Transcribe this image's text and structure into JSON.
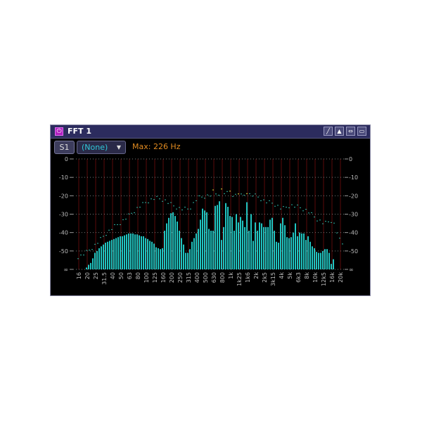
{
  "panel": {
    "title": "FFT 1",
    "power_icon": "power-icon",
    "toolbar_icons": [
      "pencil-icon",
      "collapse-icon",
      "link-icon",
      "maximize-icon"
    ],
    "source_button": "S1",
    "preset_select": "(None)",
    "max_readout": "Max: 226 Hz"
  },
  "colors": {
    "bar": "#20c4c0",
    "peak": "#30b0a0",
    "peak_highlight": "#e0e040",
    "grid_vertical": "#5a0a0a",
    "title_bar": "#2c2c5e",
    "max_text": "#e08a20"
  },
  "chart_data": {
    "type": "bar",
    "ylim": [
      -60,
      0
    ],
    "y_ticks": [
      "0",
      "-10",
      "-20",
      "-30",
      "-40",
      "-50",
      "∞"
    ],
    "y_tick_values": [
      0,
      -10,
      -20,
      -30,
      -40,
      -50,
      -60
    ],
    "x_ticks": [
      "16",
      "20",
      "25",
      "31.5",
      "40",
      "50",
      "63",
      "80",
      "100",
      "125",
      "160",
      "200",
      "250",
      "315",
      "400",
      "500",
      "630",
      "800",
      "1k",
      "1k25",
      "1k6",
      "2k",
      "2k5",
      "3k15",
      "4k",
      "5k",
      "6k3",
      "8k",
      "10k",
      "12k5",
      "16k",
      "20k"
    ],
    "grid": true,
    "values_db": [
      -59,
      -57.5,
      -56.5,
      -54,
      -51,
      -50,
      -48.5,
      -47.5,
      -46.5,
      -45.5,
      -45,
      -44.5,
      -44,
      -43.5,
      -43,
      -42.5,
      -42,
      -42,
      -41.5,
      -41,
      -40.5,
      -40.5,
      -40.5,
      -41,
      -41,
      -41.5,
      -42,
      -42,
      -43,
      -43.5,
      -44.5,
      -45,
      -46,
      -48,
      -48.5,
      -49,
      -48.5,
      -39,
      -35,
      -32,
      -29.5,
      -29,
      -31,
      -34,
      -39,
      -43,
      -46.5,
      -51,
      -51,
      -49,
      -45,
      -43,
      -40.5,
      -38,
      -33,
      -27,
      -28,
      -29,
      -38,
      -39,
      -39,
      -25.5,
      -25,
      -23,
      -44,
      -37,
      -24,
      -26,
      -31,
      -31.5,
      -39,
      -30,
      -34.5,
      -31.5,
      -33.5,
      -37,
      -23.5,
      -39,
      -30,
      -44.5,
      -34.5,
      -39,
      -34.5,
      -35,
      -37,
      -37,
      -37,
      -33,
      -32,
      -39,
      -45,
      -45.5,
      -35,
      -32,
      -36,
      -42.5,
      -43,
      -42.5,
      -40,
      -35,
      -42,
      -40,
      -40.5,
      -40.5,
      -44,
      -42,
      -45,
      -47.5,
      -48.5,
      -50.5,
      -51,
      -51,
      -50,
      -49,
      -49,
      -51,
      -57,
      -54.5
    ],
    "peak_hold_db_at_ticks": [
      -53,
      -50,
      -46,
      -41,
      -37,
      -34,
      -30,
      -26,
      -23,
      -21,
      -22,
      -25,
      -27,
      -27,
      -21,
      -20,
      -19,
      -18,
      -19,
      -20,
      -19,
      -20,
      -23,
      -24,
      -27,
      -25,
      -26,
      -28,
      -32,
      -35,
      -33,
      -46
    ]
  }
}
